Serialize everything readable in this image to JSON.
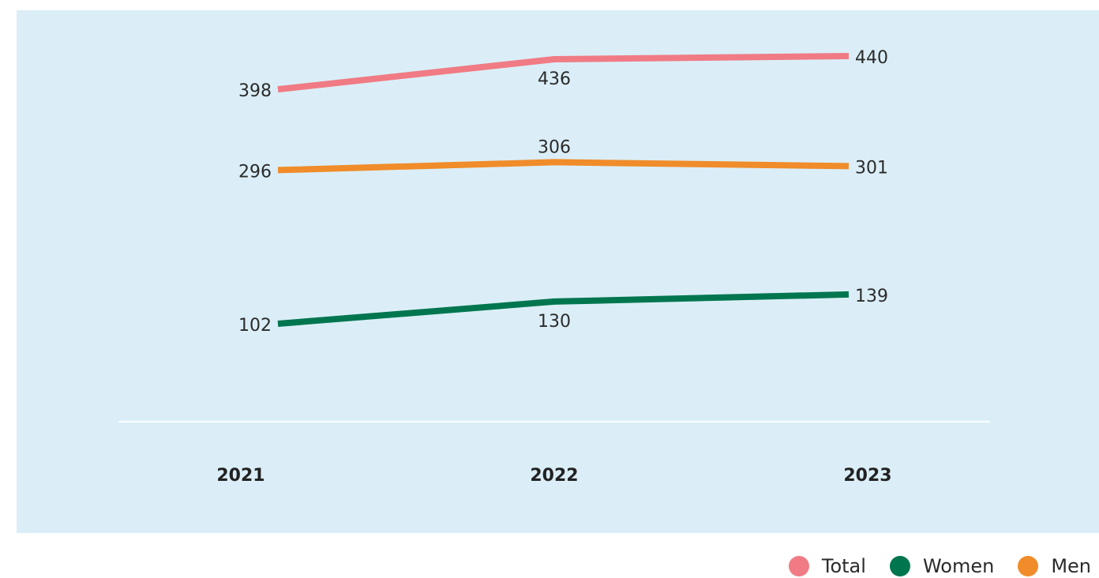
{
  "chart_data": {
    "type": "line",
    "categories": [
      "2021",
      "2022",
      "2023"
    ],
    "series": [
      {
        "name": "Total",
        "values": [
          398,
          436,
          440
        ],
        "color": "#f07b84"
      },
      {
        "name": "Men",
        "values": [
          296,
          306,
          301
        ],
        "color": "#f08c2a"
      },
      {
        "name": "Women",
        "values": [
          102,
          130,
          139
        ],
        "color": "#00764f"
      }
    ],
    "legend_order": [
      "Total",
      "Women",
      "Men"
    ],
    "legend_position": "bottom-right",
    "grid": false,
    "ylim": [
      -4,
      442
    ]
  },
  "colors": {
    "panel_background": "#dbeef7",
    "baseline": "#ffffff"
  }
}
